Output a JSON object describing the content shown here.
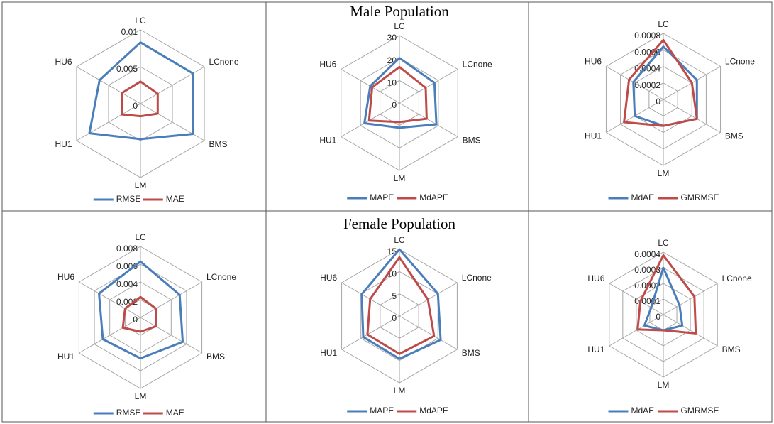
{
  "chart_data": [
    {
      "type": "radar",
      "categories": [
        "LC",
        "LCnone",
        "BMS",
        "LM",
        "HU1",
        "HU6"
      ],
      "series": [
        {
          "name": "RMSE",
          "color": "#4a7ebb",
          "values": [
            0.0083,
            0.0082,
            0.0082,
            0.0048,
            0.008,
            0.0064
          ]
        },
        {
          "name": "MAE",
          "color": "#be4b48",
          "values": [
            0.003,
            0.0027,
            0.0027,
            0.0017,
            0.0029,
            0.0029
          ]
        }
      ],
      "ylim": [
        0,
        0.01
      ],
      "yticks": [
        0,
        0.005,
        0.01
      ]
    },
    {
      "type": "radar",
      "title": "Male Population",
      "categories": [
        "LC",
        "LCnone",
        "BMS",
        "LM",
        "HU1",
        "HU6"
      ],
      "series": [
        {
          "name": "MAPE",
          "color": "#4a7ebb",
          "values": [
            20,
            18,
            19,
            11,
            18,
            15
          ]
        },
        {
          "name": "MdAPE",
          "color": "#be4b48",
          "values": [
            16,
            13.5,
            14,
            8.5,
            15.6,
            14
          ]
        }
      ],
      "ylim": [
        0,
        30
      ],
      "yticks": [
        0,
        10,
        20,
        30
      ]
    },
    {
      "type": "radar",
      "categories": [
        "LC",
        "LCnone",
        "BMS",
        "LM",
        "HU1",
        "HU6"
      ],
      "series": [
        {
          "name": "MdAE",
          "color": "#4a7ebb",
          "values": [
            0.00064,
            0.00047,
            0.00047,
            0.00032,
            0.0004,
            0.00042
          ]
        },
        {
          "name": "GMRMSE",
          "color": "#be4b48",
          "values": [
            0.00072,
            0.0004,
            0.00047,
            0.00032,
            0.00055,
            0.00048
          ]
        }
      ],
      "ylim": [
        0,
        0.0008
      ],
      "yticks": [
        0,
        0.0002,
        0.0004,
        0.0006,
        0.0008
      ]
    },
    {
      "type": "radar",
      "categories": [
        "LC",
        "LCnone",
        "BMS",
        "LM",
        "HU1",
        "HU6"
      ],
      "series": [
        {
          "name": "RMSE",
          "color": "#4a7ebb",
          "values": [
            0.0063,
            0.0051,
            0.0055,
            0.0046,
            0.0049,
            0.0054
          ]
        },
        {
          "name": "MAE",
          "color": "#be4b48",
          "values": [
            0.0023,
            0.002,
            0.002,
            0.0016,
            0.0023,
            0.002
          ]
        }
      ],
      "ylim": [
        0,
        0.008
      ],
      "yticks": [
        0,
        0.002,
        0.004,
        0.006,
        0.008
      ]
    },
    {
      "type": "radar",
      "title": "Female Population",
      "categories": [
        "LC",
        "LCnone",
        "BMS",
        "LM",
        "HU1",
        "HU6"
      ],
      "series": [
        {
          "name": "MAPE",
          "color": "#4a7ebb",
          "values": [
            15,
            10,
            10.7,
            9.6,
            9.4,
            9.8
          ]
        },
        {
          "name": "MdAPE",
          "color": "#be4b48",
          "values": [
            13.2,
            7.4,
            9,
            8.5,
            8.3,
            7.6
          ]
        }
      ],
      "ylim": [
        0,
        15
      ],
      "yticks": [
        0,
        5,
        10,
        15
      ]
    },
    {
      "type": "radar",
      "categories": [
        "LC",
        "LCnone",
        "BMS",
        "LM",
        "HU1",
        "HU6"
      ],
      "series": [
        {
          "name": "MdAE",
          "color": "#4a7ebb",
          "values": [
            0.0003,
            0.00012,
            0.00014,
            0.0001,
            0.00014,
            9e-05
          ]
        },
        {
          "name": "GMRMSE",
          "color": "#be4b48",
          "values": [
            0.00038,
            0.00023,
            0.00024,
            0.0001,
            0.00019,
            0.00017
          ]
        }
      ],
      "ylim": [
        0,
        0.0004
      ],
      "yticks": [
        0,
        0.0001,
        0.0002,
        0.0003,
        0.0004
      ]
    }
  ]
}
